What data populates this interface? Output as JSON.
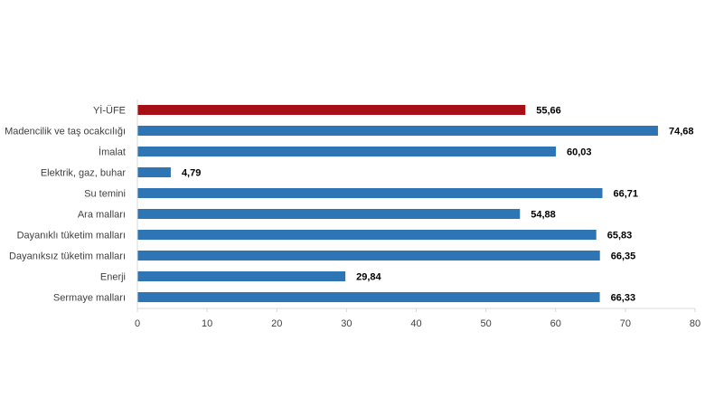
{
  "chart_data": {
    "type": "bar",
    "orientation": "horizontal",
    "categories": [
      "Yİ-ÜFE",
      "Madencilik ve taş ocakcılığı",
      "İmalat",
      "Elektrik, gaz, buhar",
      "Su temini",
      "Ara malları",
      "Dayanıklı tüketim malları",
      "Dayanıksız tüketim malları",
      "Enerji",
      "Sermaye malları"
    ],
    "values": [
      55.66,
      74.68,
      60.03,
      4.79,
      66.71,
      54.88,
      65.83,
      66.35,
      29.84,
      66.33
    ],
    "value_labels": [
      "55,66",
      "74,68",
      "60,03",
      "4,79",
      "66,71",
      "54,88",
      "65,83",
      "66,35",
      "29,84",
      "66,33"
    ],
    "bar_colors": [
      "#a50f15",
      "#2e75b6",
      "#2e75b6",
      "#2e75b6",
      "#2e75b6",
      "#2e75b6",
      "#2e75b6",
      "#2e75b6",
      "#2e75b6",
      "#2e75b6"
    ],
    "xlim": [
      0,
      80
    ],
    "xticks": [
      0,
      10,
      20,
      30,
      40,
      50,
      60,
      70,
      80
    ],
    "grid": false,
    "legend": "none"
  }
}
